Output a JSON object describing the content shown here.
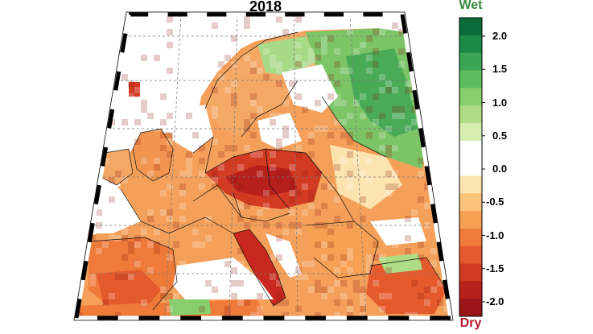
{
  "map": {
    "title": "2018",
    "colorbar": {
      "top_label": "Wet",
      "bottom_label": "Dry",
      "top_label_color": "#3a8a3a",
      "bottom_label_color": "#b2182b",
      "ticks": [
        "2.0",
        "1.5",
        "1.0",
        "0.5",
        "0.0",
        "-0.5",
        "-1.0",
        "-1.5",
        "-2.0"
      ],
      "colors": [
        "#0a6b3a",
        "#1a8a45",
        "#3aa655",
        "#5cbc60",
        "#86cf6c",
        "#aedd86",
        "#d6efb0",
        "#ffffff",
        "#ffffff",
        "#fde3b0",
        "#fbc27a",
        "#f6a054",
        "#ef7a3a",
        "#e55a2c",
        "#d23a22",
        "#b8201c",
        "#9a1418"
      ]
    }
  }
}
